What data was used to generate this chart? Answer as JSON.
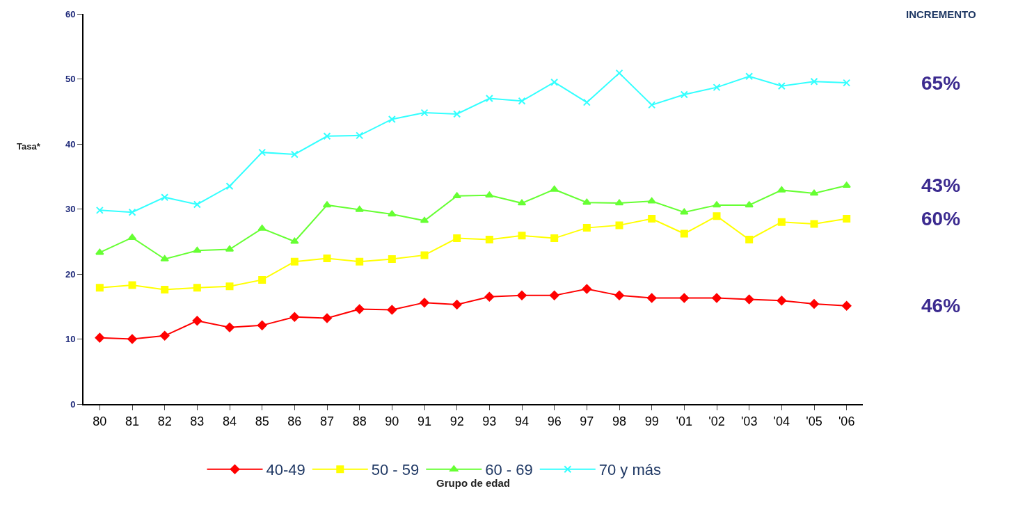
{
  "chart_data": {
    "type": "line",
    "xlabel": "Grupo de edad",
    "ylabel": "Tasa*",
    "categories": [
      "80",
      "81",
      "82",
      "83",
      "84",
      "85",
      "86",
      "87",
      "88",
      "90",
      "91",
      "92",
      "93",
      "94",
      "96",
      "97",
      "98",
      "99",
      "'01",
      "'02",
      "'03",
      "'04",
      "'05",
      "'06"
    ],
    "series": [
      {
        "name": "40-49",
        "color": "#ff0000",
        "marker": "diamond",
        "values": [
          10.2,
          10.0,
          10.5,
          12.8,
          11.8,
          12.1,
          13.4,
          13.2,
          14.6,
          14.5,
          15.6,
          15.3,
          16.5,
          16.7,
          16.7,
          17.7,
          16.7,
          16.3,
          16.3,
          16.3,
          16.1,
          15.9,
          15.4,
          15.1
        ]
      },
      {
        "name": "50 - 59",
        "color": "#ffff00",
        "marker": "square",
        "values": [
          17.9,
          18.3,
          17.6,
          17.9,
          18.1,
          19.1,
          21.9,
          22.4,
          21.9,
          22.3,
          22.9,
          25.5,
          25.3,
          25.9,
          25.5,
          27.1,
          27.5,
          28.5,
          26.2,
          28.9,
          25.3,
          28.0,
          27.7,
          28.5
        ]
      },
      {
        "name": "60 - 69",
        "color": "#66ff33",
        "marker": "triangle",
        "values": [
          23.3,
          25.6,
          22.3,
          23.6,
          23.8,
          27.0,
          25.0,
          30.6,
          29.9,
          29.2,
          28.2,
          32.0,
          32.1,
          30.9,
          33.0,
          31.0,
          30.9,
          31.2,
          29.5,
          30.6,
          30.6,
          32.9,
          32.4,
          33.6
        ]
      },
      {
        "name": "70 y más",
        "color": "#33ffff",
        "marker": "cross",
        "values": [
          29.8,
          29.5,
          31.8,
          30.7,
          33.5,
          38.7,
          38.4,
          41.2,
          41.3,
          43.8,
          44.8,
          44.6,
          47.0,
          46.6,
          49.5,
          46.4,
          50.9,
          46.0,
          47.6,
          48.7,
          50.4,
          48.9,
          49.6,
          49.4
        ]
      }
    ],
    "annotations": [
      "INCREMENTO",
      "46%",
      "60%",
      "43%",
      "65%"
    ],
    "ylim": [
      0,
      60
    ],
    "yticks": [
      0,
      10,
      20,
      30,
      40,
      50,
      60
    ],
    "legend": "bottom"
  }
}
